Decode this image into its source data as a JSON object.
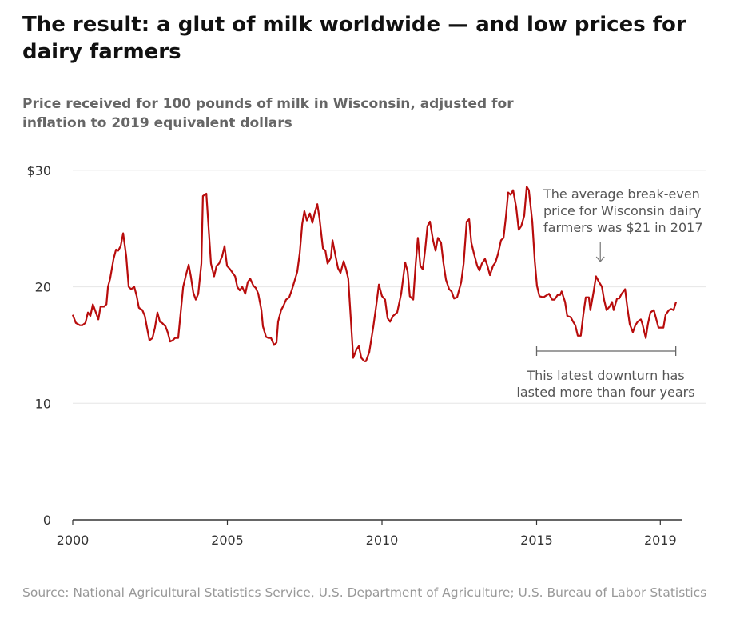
{
  "title": "The result: a glut of milk worldwide — and low prices for dairy farmers",
  "subtitle": "Price received for 100 pounds of milk in Wisconsin, adjusted for inflation to 2019 equivalent dollars",
  "source": "Source: National Agricultural Statistics Service, U.S. Department of Agriculture; U.S. Bureau of Labor Statistics",
  "colors": {
    "line": "#b80c0c",
    "grid": "#e6e6e6",
    "axis": "#333333",
    "annotation": "#555555"
  },
  "annotations": {
    "breakeven": {
      "lines": [
        "The average break-even",
        "price for Wisconsin dairy",
        "farmers was $21 in 2017"
      ],
      "value": 21,
      "x_range": [
        2016.6,
        2017.95
      ],
      "icon": "arrow-down-icon"
    },
    "downturn": {
      "lines": [
        "This latest downturn has",
        "lasted more than four years"
      ],
      "x_range": [
        2015.0,
        2019.5
      ]
    }
  },
  "chart_data": {
    "type": "line",
    "title": "The result: a glut of milk worldwide — and low prices for dairy farmers",
    "xlabel": "",
    "ylabel": "Price received for 100 pounds of milk in Wisconsin, adjusted for inflation to 2019 equivalent dollars",
    "xlim": [
      2000,
      2019.6
    ],
    "ylim": [
      0,
      30
    ],
    "grid": true,
    "x_ticks": [
      {
        "value": 2000,
        "label": "2000"
      },
      {
        "value": 2005,
        "label": "2005"
      },
      {
        "value": 2010,
        "label": "2010"
      },
      {
        "value": 2015,
        "label": "2015"
      },
      {
        "value": 2019,
        "label": "2019"
      }
    ],
    "y_ticks": [
      {
        "value": 0,
        "label": "0"
      },
      {
        "value": 10,
        "label": "10"
      },
      {
        "value": 20,
        "label": "20"
      },
      {
        "value": 30,
        "label": "$30"
      }
    ],
    "series": [
      {
        "x": [
          2000.0,
          2000.1,
          2000.23,
          2000.31,
          2000.41,
          2000.49,
          2000.57,
          2000.65,
          2000.72,
          2000.83,
          2000.9,
          2001.01,
          2001.09,
          2001.14,
          2001.21,
          2001.32,
          2001.4,
          2001.47,
          2001.55,
          2001.63,
          2001.73,
          2001.81,
          2001.89,
          2001.99,
          2002.07,
          2002.14,
          2002.25,
          2002.33,
          2002.4,
          2002.48,
          2002.58,
          2002.66,
          2002.74,
          2002.82,
          2002.89,
          2003.0,
          2003.07,
          2003.15,
          2003.23,
          2003.31,
          2003.41,
          2003.49,
          2003.57,
          2003.67,
          2003.75,
          2003.82,
          2003.9,
          2003.98,
          2004.06,
          2004.16,
          2004.21,
          2004.32,
          2004.39,
          2004.47,
          2004.57,
          2004.65,
          2004.73,
          2004.83,
          2004.91,
          2004.99,
          2005.09,
          2005.17,
          2005.25,
          2005.32,
          2005.4,
          2005.48,
          2005.58,
          2005.66,
          2005.74,
          2005.84,
          2005.92,
          2006.0,
          2006.1,
          2006.15,
          2006.25,
          2006.33,
          2006.41,
          2006.51,
          2006.59,
          2006.64,
          2006.74,
          2006.82,
          2006.9,
          2007.0,
          2007.08,
          2007.16,
          2007.26,
          2007.34,
          2007.42,
          2007.49,
          2007.57,
          2007.67,
          2007.75,
          2007.83,
          2007.91,
          2007.98,
          2008.09,
          2008.17,
          2008.24,
          2008.35,
          2008.4,
          2008.5,
          2008.58,
          2008.66,
          2008.76,
          2008.84,
          2008.91,
          2009.02,
          2009.07,
          2009.17,
          2009.25,
          2009.33,
          2009.43,
          2009.48,
          2009.59,
          2009.72,
          2009.82,
          2009.9,
          2010.0,
          2010.1,
          2010.18,
          2010.26,
          2010.36,
          2010.49,
          2010.62,
          2010.75,
          2010.83,
          2010.9,
          2011.01,
          2011.09,
          2011.16,
          2011.24,
          2011.32,
          2011.4,
          2011.47,
          2011.55,
          2011.65,
          2011.73,
          2011.81,
          2011.91,
          2011.99,
          2012.07,
          2012.17,
          2012.25,
          2012.33,
          2012.43,
          2012.56,
          2012.64,
          2012.74,
          2012.82,
          2012.89,
          2012.97,
          2013.08,
          2013.15,
          2013.23,
          2013.33,
          2013.41,
          2013.49,
          2013.59,
          2013.67,
          2013.75,
          2013.85,
          2013.93,
          2014.01,
          2014.08,
          2014.16,
          2014.24,
          2014.34,
          2014.42,
          2014.5,
          2014.6,
          2014.68,
          2014.75,
          2014.86,
          2014.94,
          2015.01,
          2015.09,
          2015.22,
          2015.4,
          2015.5,
          2015.58,
          2015.68,
          2015.76,
          2015.81,
          2015.92,
          2015.99,
          2016.1,
          2016.18,
          2016.25,
          2016.33,
          2016.43,
          2016.51,
          2016.59,
          2016.69,
          2016.74,
          2016.85,
          2016.92,
          2017.0,
          2017.11,
          2017.18,
          2017.26,
          2017.36,
          2017.44,
          2017.49,
          2017.6,
          2017.67,
          2017.75,
          2017.86,
          2017.93,
          2018.01,
          2018.11,
          2018.19,
          2018.27,
          2018.37,
          2018.42,
          2018.53,
          2018.6,
          2018.68,
          2018.79,
          2018.86,
          2018.94,
          2019.1,
          2019.17,
          2019.28,
          2019.35,
          2019.43,
          2019.51
        ],
        "y": [
          17.6,
          16.9,
          16.7,
          16.7,
          16.9,
          17.8,
          17.5,
          18.5,
          18.0,
          17.2,
          18.3,
          18.3,
          18.5,
          20.0,
          20.7,
          22.4,
          23.2,
          23.1,
          23.5,
          24.6,
          22.6,
          20.0,
          19.8,
          20.0,
          19.2,
          18.2,
          18.0,
          17.5,
          16.5,
          15.4,
          15.6,
          16.5,
          17.8,
          17.0,
          16.9,
          16.6,
          16.1,
          15.3,
          15.4,
          15.6,
          15.6,
          17.8,
          20.0,
          21.1,
          21.9,
          20.9,
          19.5,
          18.9,
          19.4,
          22.0,
          27.8,
          28.0,
          25.2,
          22.0,
          20.9,
          21.8,
          22.0,
          22.6,
          23.5,
          21.8,
          21.5,
          21.2,
          20.9,
          20.0,
          19.7,
          20.0,
          19.4,
          20.4,
          20.7,
          20.1,
          19.9,
          19.4,
          18.0,
          16.6,
          15.7,
          15.6,
          15.6,
          15.0,
          15.2,
          17.0,
          18.0,
          18.4,
          18.9,
          19.1,
          19.7,
          20.4,
          21.3,
          22.9,
          25.4,
          26.5,
          25.7,
          26.3,
          25.5,
          26.4,
          27.1,
          25.9,
          23.3,
          23.1,
          22.0,
          22.5,
          24.0,
          22.6,
          21.6,
          21.2,
          22.2,
          21.5,
          20.7,
          16.0,
          13.9,
          14.6,
          14.9,
          13.9,
          13.6,
          13.6,
          14.4,
          16.6,
          18.5,
          20.2,
          19.2,
          18.9,
          17.3,
          17.0,
          17.5,
          17.8,
          19.4,
          22.1,
          21.3,
          19.2,
          18.9,
          22.0,
          24.2,
          21.8,
          21.5,
          23.3,
          25.2,
          25.6,
          24.0,
          23.1,
          24.2,
          23.8,
          22.0,
          20.6,
          19.8,
          19.6,
          19.0,
          19.1,
          20.4,
          22.0,
          25.6,
          25.8,
          23.8,
          22.9,
          21.8,
          21.4,
          22.0,
          22.4,
          21.8,
          21.0,
          21.8,
          22.1,
          22.8,
          24.0,
          24.2,
          26.1,
          28.1,
          27.9,
          28.3,
          26.8,
          24.9,
          25.2,
          26.1,
          28.6,
          28.3,
          25.6,
          22.2,
          20.1,
          19.2,
          19.1,
          19.4,
          18.9,
          18.9,
          19.3,
          19.3,
          19.6,
          18.7,
          17.5,
          17.4,
          17.0,
          16.7,
          15.8,
          15.8,
          17.6,
          19.1,
          19.1,
          18.0,
          19.7,
          20.9,
          20.5,
          20.0,
          18.9,
          18.0,
          18.3,
          18.7,
          18.0,
          19.0,
          19.0,
          19.4,
          19.8,
          18.3,
          16.8,
          16.1,
          16.7,
          17.0,
          17.2,
          16.8,
          15.6,
          16.8,
          17.8,
          18.0,
          17.3,
          16.5,
          16.5,
          17.6,
          18.0,
          18.1,
          18.0,
          18.7
        ]
      }
    ]
  }
}
